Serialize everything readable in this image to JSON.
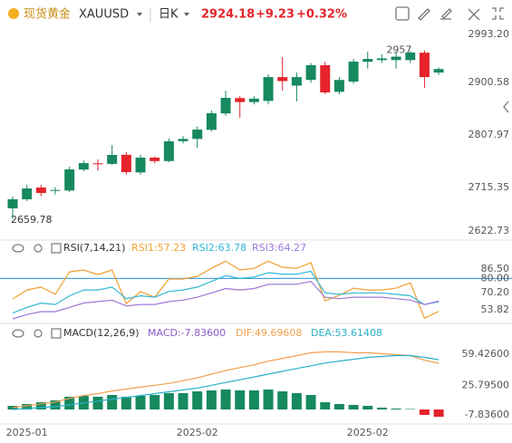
{
  "header": {
    "name": "现货黄金",
    "symbol": "XAUUSD",
    "period": "日K",
    "price": "2924.18",
    "change": "+9.23",
    "change_pct": "+0.32%"
  },
  "chart_data": [
    {
      "type": "candlestick",
      "categories": [
        null,
        "2025-01",
        null,
        null,
        null,
        null,
        null,
        null,
        null,
        null,
        null,
        null,
        null,
        "2025-02",
        null,
        null,
        null,
        null,
        null,
        null,
        null,
        null,
        null,
        null,
        null,
        "2025-02",
        null,
        null,
        null,
        null,
        null
      ],
      "open": [
        2678.6,
        2694.6,
        2715.3,
        2710,
        2710,
        2747,
        2758,
        2757,
        2773,
        2742,
        2768,
        2762,
        2797,
        2801,
        2817,
        2846,
        2873,
        2866,
        2868,
        2910,
        2895,
        2905,
        2931,
        2884,
        2902,
        2937,
        2940,
        2940,
        2940,
        2953,
        2918
      ],
      "high": [
        2699.4,
        2720,
        2720,
        2716,
        2752,
        2763,
        2765,
        2790,
        2778,
        2773,
        2770,
        2802,
        2806,
        2823,
        2851,
        2886,
        2877,
        2876,
        2915,
        2945.3,
        2918,
        2935,
        2937,
        2910,
        2942,
        2955,
        2950,
        2955,
        2956.15,
        2957,
        2927
      ],
      "low": [
        2659.78,
        2691.4,
        2700,
        2703,
        2707,
        2744,
        2745,
        2755,
        2738,
        2738,
        2758,
        2760,
        2793,
        2785,
        2814,
        2842,
        2838.3,
        2862,
        2862,
        2886,
        2867,
        2900,
        2880,
        2880,
        2898,
        2925,
        2935,
        2925,
        2935,
        2891,
        2914
      ],
      "close": [
        2694.6,
        2713.7,
        2705.7,
        2711,
        2747.3,
        2758.4,
        2757,
        2772.8,
        2742.5,
        2768,
        2762,
        2796.8,
        2801,
        2817.5,
        2846.3,
        2873.4,
        2866,
        2872,
        2910,
        2903,
        2910,
        2931,
        2883,
        2905,
        2937.3,
        2942,
        2943,
        2946,
        2953.3,
        2910,
        2924.18
      ],
      "up_color": "#17895f",
      "down_color": "#e5232b",
      "ylim": [
        2622.7,
        3001.2
      ],
      "yticks": [
        {
          "value": 2993.2,
          "label": "2993.20"
        },
        2900.58,
        2807.97,
        2715.35,
        2622.73
      ]
    },
    {
      "type": "line",
      "title": "RSI(7,14,21)",
      "series": [
        {
          "name": "RSI1:57.23",
          "color": "#f0a030",
          "values": [
            65.8,
            72,
            74,
            69,
            84.6,
            85.9,
            82.7,
            85.9,
            62.6,
            70.8,
            67,
            79.6,
            79.6,
            81.5,
            87,
            92,
            85.9,
            87,
            92,
            87.8,
            87,
            91,
            64.5,
            68.3,
            73.3,
            72,
            72,
            73.3,
            77,
            52.5,
            57.23
          ]
        },
        {
          "name": "RSI2:63.78",
          "color": "#34b8d6",
          "values": [
            56,
            60,
            63,
            62,
            68,
            72,
            72,
            74,
            66,
            68,
            67,
            71,
            72,
            74,
            78,
            82,
            80,
            81,
            84,
            83,
            83,
            85,
            70,
            69,
            70,
            70,
            70,
            69,
            68,
            62,
            63.78
          ]
        },
        {
          "name": "RSI3:64.27",
          "color": "#9b78d8",
          "values": [
            52,
            55,
            57,
            57,
            60,
            63,
            64,
            65,
            61,
            62,
            62,
            64,
            65,
            67,
            70,
            73,
            72,
            73,
            76,
            76,
            76,
            78,
            67,
            66,
            67,
            67,
            67,
            66,
            65,
            62,
            64.27
          ]
        }
      ],
      "reference_line": {
        "value": 80,
        "color": "#4aa3df"
      },
      "ylim": [
        52,
        95.3
      ],
      "yticks": [
        {
          "value": 86.5,
          "label": "86.50"
        },
        {
          "value": 80,
          "label": "80.00"
        },
        {
          "value": 70.2,
          "label": "70.20"
        },
        53.82
      ]
    },
    {
      "type": "macd",
      "title": "MACD(12,26,9)",
      "series": [
        {
          "name": "MACD:-7.83600",
          "type": "bar",
          "color": "#8a5cc7",
          "up_color": "#17895f",
          "down_color": "#e5232b",
          "values": [
            3.9,
            5.9,
            7.8,
            9.8,
            13.7,
            14.6,
            13.7,
            15.6,
            13.7,
            14.6,
            15.6,
            17.6,
            17.6,
            19.5,
            20.5,
            21.5,
            20.5,
            20.5,
            21.5,
            19.5,
            17.6,
            15.6,
            7.8,
            5.9,
            4.9,
            3.9,
            2,
            1,
            0.5,
            -5.9,
            -7.836
          ]
        },
        {
          "name": "DIF:49.69608",
          "color": "#f0a050",
          "values": [
            2,
            4,
            6,
            8,
            12,
            15,
            17,
            20,
            22,
            24,
            26,
            28,
            31,
            34,
            38,
            42,
            45,
            48,
            52,
            55,
            58,
            61,
            62,
            62,
            61,
            61,
            60,
            59,
            58,
            53,
            49.69608
          ]
        },
        {
          "name": "DEA:53.61408",
          "color": "#2ab0c8",
          "values": [
            0,
            1,
            2,
            3,
            5,
            7,
            9,
            11,
            13,
            15,
            17,
            19,
            21,
            23,
            26,
            29,
            32,
            35,
            38,
            41,
            44,
            47,
            50,
            52,
            54,
            56,
            57,
            58,
            58,
            56,
            53.61408
          ]
        }
      ],
      "ylim": [
        -15.6,
        87.7
      ],
      "yticks": [
        {
          "value": 59.426,
          "label": "59.42600"
        },
        {
          "value": 25.795,
          "label": "25.79500"
        },
        {
          "value": -7.836,
          "label": "-7.83600"
        }
      ]
    }
  ]
}
